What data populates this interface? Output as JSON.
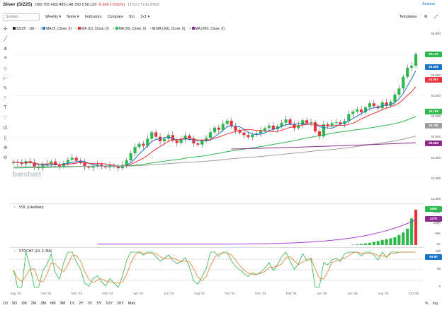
{
  "header": {
    "title": "Silver (SIZ25)",
    "open_label": "O",
    "open": "50.755",
    "high_label": "H",
    "high": "52.495",
    "low_label": "L",
    "low": "48.750",
    "close_label": "C",
    "close": "50.120",
    "change": "-0.309 (-0.61%)",
    "time_status": "14:50 CT DELAYED",
    "actions": "Actions"
  },
  "toolbar": {
    "search_placeholder": "Symbol...",
    "interval": "Weekly",
    "none": "None",
    "indicators": "Indicators",
    "compare": "Compare",
    "fx": "f(x)",
    "layout": "1x1",
    "templates": "Templates"
  },
  "legend_main": [
    {
      "label": "SIZ25 - 1W -",
      "color": "#222222"
    },
    {
      "label": "MA (5, Close, 0)",
      "color": "#1a73c8"
    },
    {
      "label": "MA (10, Close, 0)",
      "color": "#e8313a"
    },
    {
      "label": "MA (50, Close, 0)",
      "color": "#2db84c"
    },
    {
      "label": "MA (100, Close, 0)",
      "color": "#9e9e9e"
    },
    {
      "label": "MA (200, Close, 0)",
      "color": "#8e2a8e"
    }
  ],
  "legend_vol": "VOL (LikeMain)",
  "legend_sto": "STOCHF (14, 3, MA)",
  "watermark": "barchart",
  "price_axis": {
    "ticks": [
      "55.000",
      "50.000",
      "45.000",
      "40.000",
      "35.000",
      "30.000",
      "25.000",
      "20.000",
      "15.000"
    ],
    "tags": [
      {
        "text": "50.120",
        "color": "#2db84c"
      },
      {
        "text": "46.888",
        "color": "#1a73c8"
      },
      {
        "text": "43.807",
        "color": "#e8313a"
      },
      {
        "text": "36.188",
        "color": "#2db84c"
      },
      {
        "text": "32.785",
        "color": "#9e9e9e"
      },
      {
        "text": "28.583",
        "color": "#8e2a8e"
      }
    ]
  },
  "vol_axis": {
    "ticks": [
      "150K",
      "100K",
      "50K",
      "0K"
    ],
    "tags": [
      {
        "text": "168K",
        "color": "#2db84c"
      },
      {
        "text": "127K",
        "color": "#8e2a8e"
      }
    ]
  },
  "sto_axis": {
    "ticks": [
      "100",
      "84.90",
      "50",
      "0"
    ],
    "tag": {
      "text": "84.90",
      "color": "#1a73c8"
    }
  },
  "time_axis": [
    "Aug '23",
    "Oct '23",
    "Dec '23",
    "Feb '24",
    "Apr '24",
    "Jun '24",
    "Aug '24",
    "Oct '24",
    "Dec '24",
    "Feb '25",
    "Apr '25",
    "Jun '25",
    "Aug '25",
    "Oct '25"
  ],
  "periods": [
    "1D",
    "5D",
    "1M",
    "2M",
    "3M",
    "6M",
    "9M",
    "1Y",
    "2Y",
    "3Y",
    "5Y",
    "10Y",
    "20Y",
    "Max"
  ],
  "bottom_right": {
    "pct": "%",
    "log": "log"
  },
  "chart_data": {
    "type": "candlestick",
    "ylim": [
      15,
      55
    ],
    "close_series": [
      24.0,
      23.8,
      23.5,
      24.2,
      23.9,
      22.8,
      22.5,
      23.3,
      23.6,
      24.1,
      23.2,
      22.9,
      23.7,
      24.5,
      25.0,
      24.3,
      23.8,
      22.8,
      22.6,
      23.1,
      23.4,
      23.0,
      22.7,
      23.2,
      22.9,
      22.5,
      23.3,
      24.4,
      26.1,
      27.6,
      28.4,
      27.9,
      29.6,
      31.2,
      30.1,
      29.0,
      29.6,
      30.5,
      29.2,
      28.6,
      29.4,
      30.4,
      29.7,
      28.5,
      28.2,
      29.1,
      29.8,
      31.2,
      32.3,
      31.8,
      33.2,
      34.0,
      32.6,
      31.6,
      31.1,
      30.5,
      30.0,
      30.6,
      30.9,
      31.6,
      32.2,
      32.8,
      31.9,
      32.6,
      33.5,
      34.3,
      33.2,
      32.2,
      32.9,
      34.1,
      33.4,
      33.6,
      31.4,
      30.2,
      33.1,
      32.8,
      33.4,
      33.6,
      33.2,
      33.9,
      35.6,
      36.2,
      36.7,
      36.0,
      37.2,
      38.2,
      37.5,
      37.0,
      38.4,
      37.6,
      38.6,
      40.3,
      41.8,
      44.6,
      46.8,
      47.3,
      50.1
    ]
  }
}
